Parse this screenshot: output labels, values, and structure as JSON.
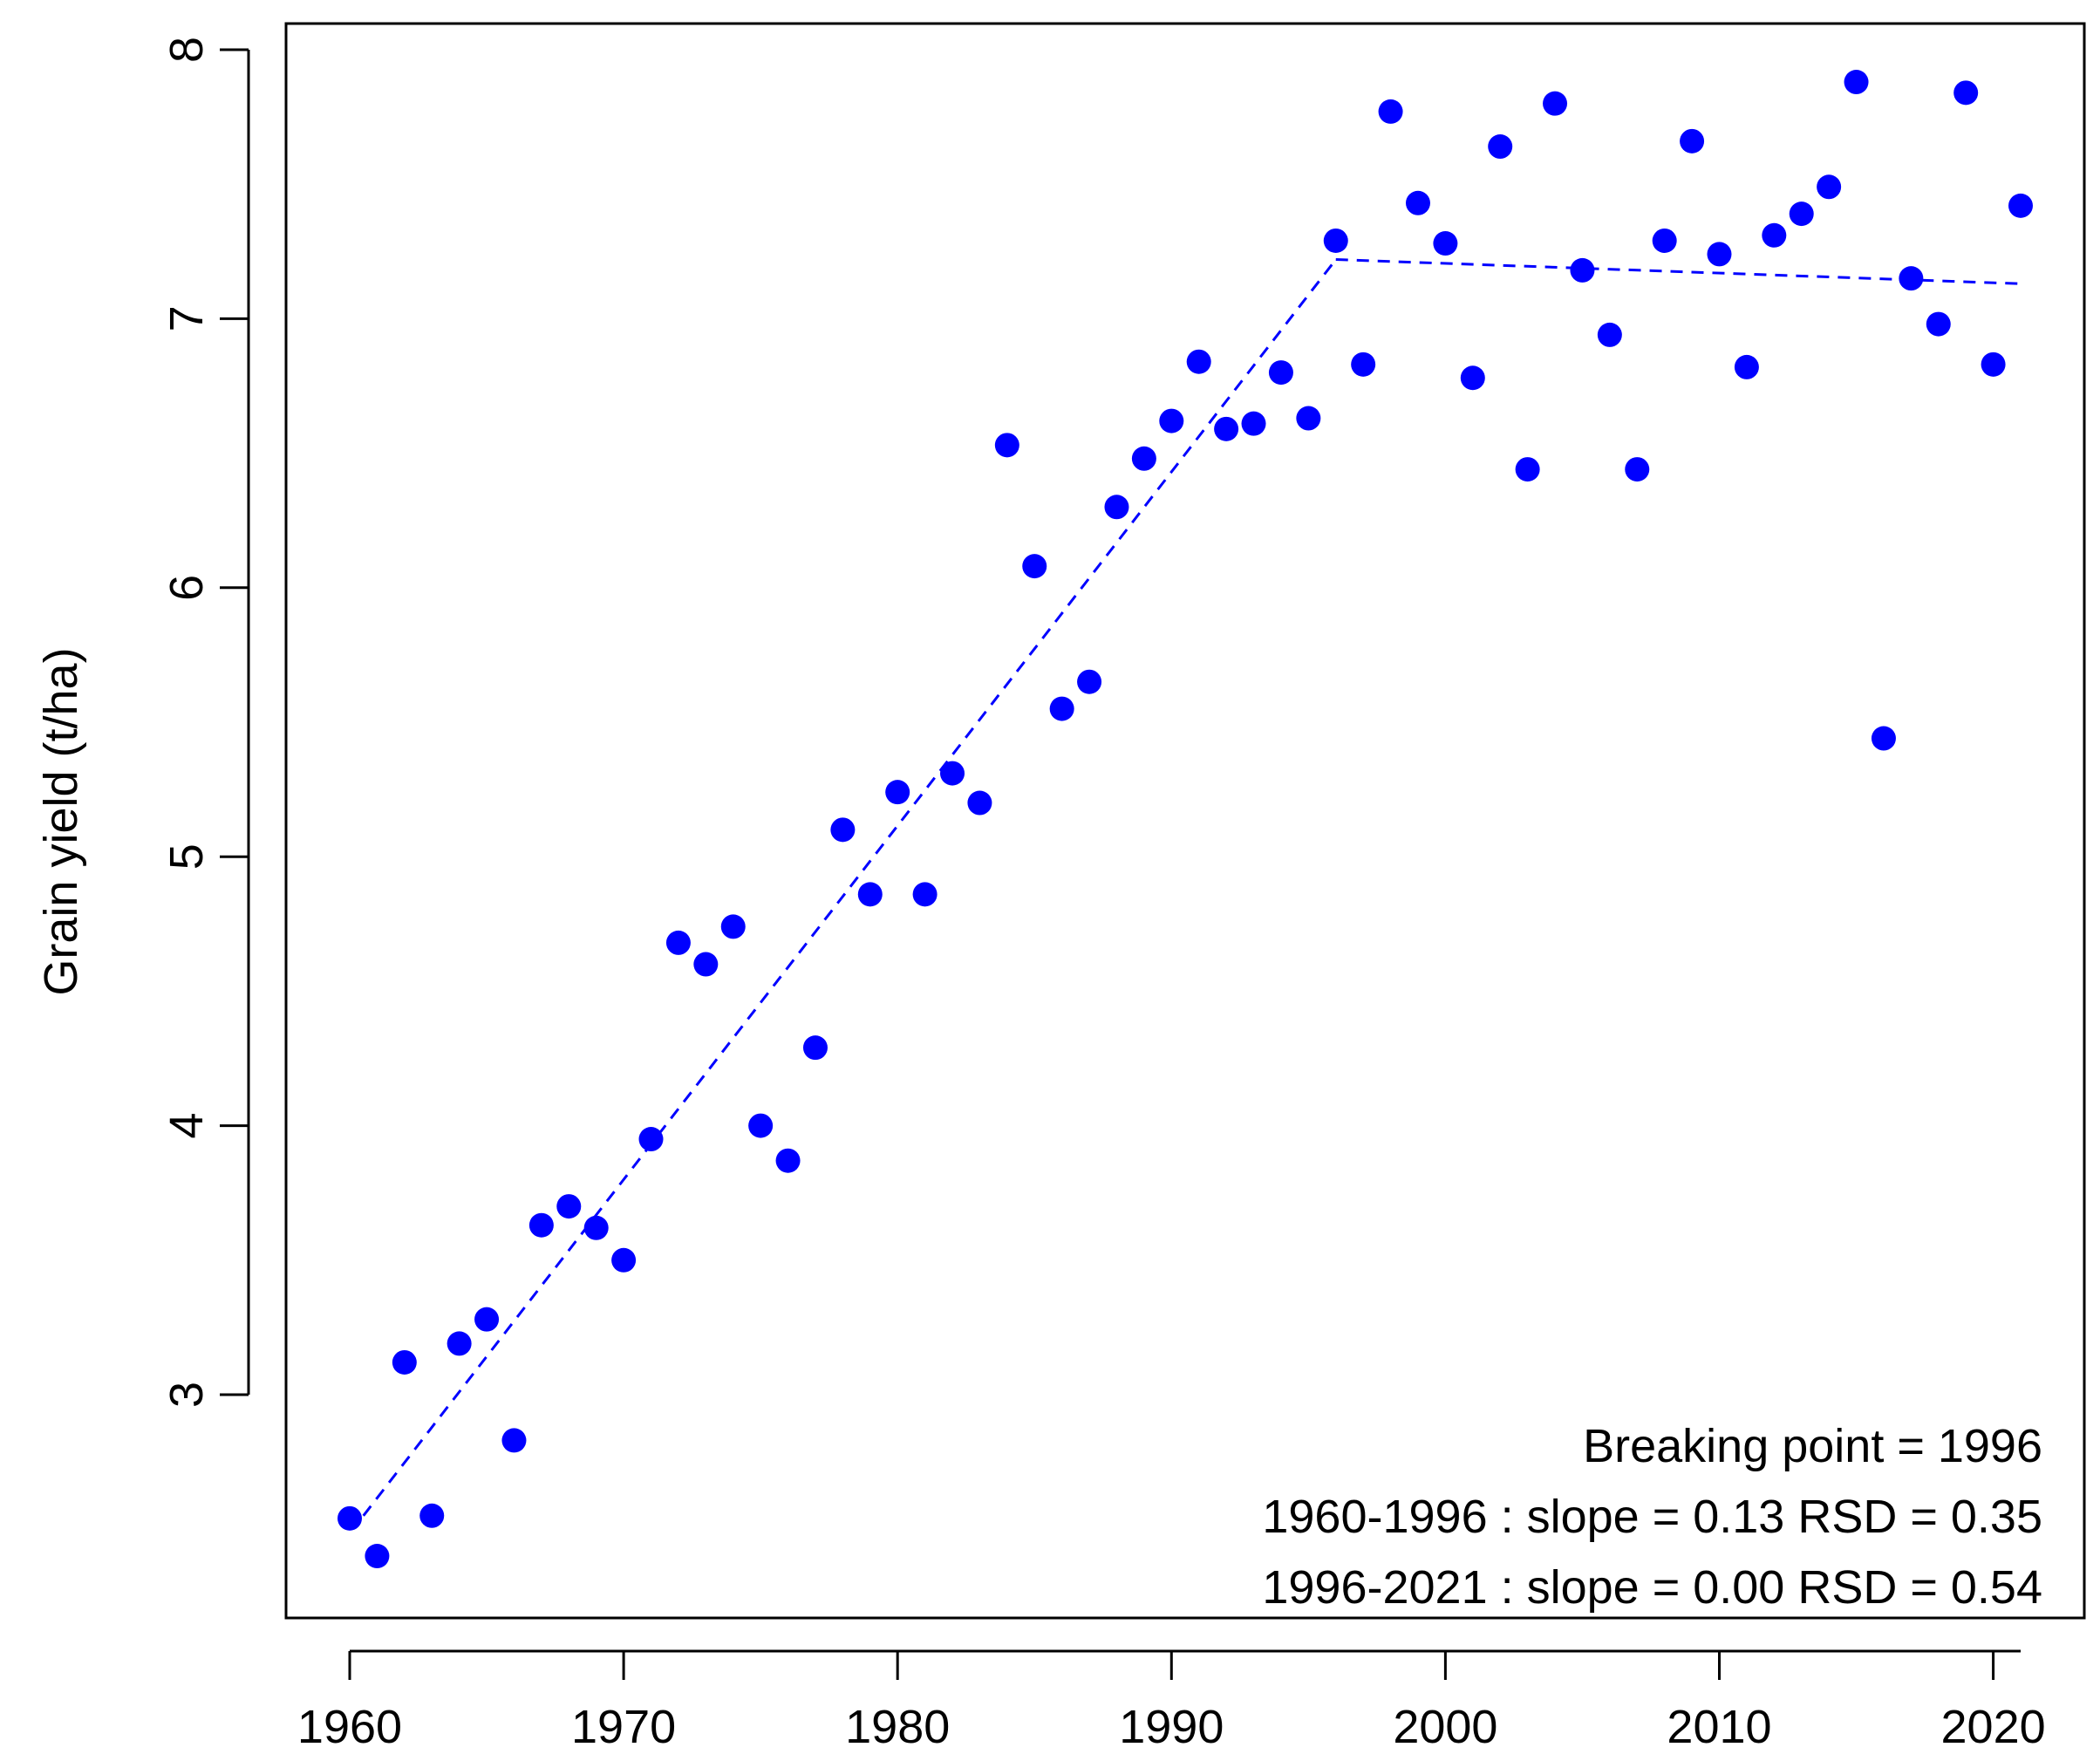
{
  "chart_data": {
    "type": "scatter",
    "title": "",
    "xlabel": "",
    "ylabel": "Grain yield (t/ha)",
    "xlim": [
      1960,
      2021
    ],
    "ylim": [
      2.4,
      8.0
    ],
    "x_ticks": [
      1960,
      1970,
      1980,
      1990,
      2000,
      2010,
      2020
    ],
    "y_ticks": [
      3,
      4,
      5,
      6,
      7,
      8
    ],
    "grid": false,
    "point_color": "#0000ff",
    "line_color": "#0000ff",
    "series": [
      {
        "x": [
          1960,
          1961,
          1962,
          1963,
          1964,
          1965,
          1966,
          1967,
          1968,
          1969,
          1970,
          1971,
          1972,
          1973,
          1974,
          1975,
          1976,
          1977,
          1978,
          1979,
          1980,
          1981,
          1982,
          1983,
          1984,
          1985,
          1986,
          1987,
          1988,
          1989,
          1990,
          1991,
          1992,
          1993,
          1994,
          1995,
          1996,
          1997,
          1998,
          1999,
          2000,
          2001,
          2002,
          2003,
          2004,
          2005,
          2006,
          2007,
          2008,
          2009,
          2010,
          2011,
          2012,
          2013,
          2014,
          2015,
          2016,
          2017,
          2018,
          2019,
          2020,
          2021
        ],
        "y": [
          2.54,
          2.4,
          3.12,
          2.55,
          3.19,
          3.28,
          2.83,
          3.63,
          3.7,
          3.62,
          3.5,
          3.95,
          4.68,
          4.6,
          4.74,
          4.0,
          3.87,
          4.29,
          5.1,
          4.86,
          5.24,
          4.86,
          5.31,
          5.2,
          6.53,
          6.08,
          5.55,
          5.65,
          6.3,
          6.48,
          6.62,
          6.84,
          6.59,
          6.61,
          6.8,
          6.63,
          7.29,
          6.83,
          7.77,
          7.43,
          7.28,
          6.78,
          7.64,
          6.44,
          7.8,
          7.18,
          6.94,
          6.44,
          7.29,
          7.66,
          7.24,
          6.82,
          7.31,
          7.39,
          7.49,
          7.88,
          5.44,
          7.15,
          6.98,
          7.84,
          6.83,
          7.42
        ]
      }
    ],
    "fit_segments": [
      {
        "x": [
          1960.5,
          1996
        ],
        "y": [
          2.55,
          7.22
        ]
      },
      {
        "x": [
          1996,
          2021
        ],
        "y": [
          7.22,
          7.13
        ]
      }
    ],
    "annotations": [
      "Breaking point = 1996",
      "1960-1996 : slope =  0.13 RSD =  0.35",
      "1996-2021 : slope =  0.00 RSD =  0.54"
    ]
  }
}
